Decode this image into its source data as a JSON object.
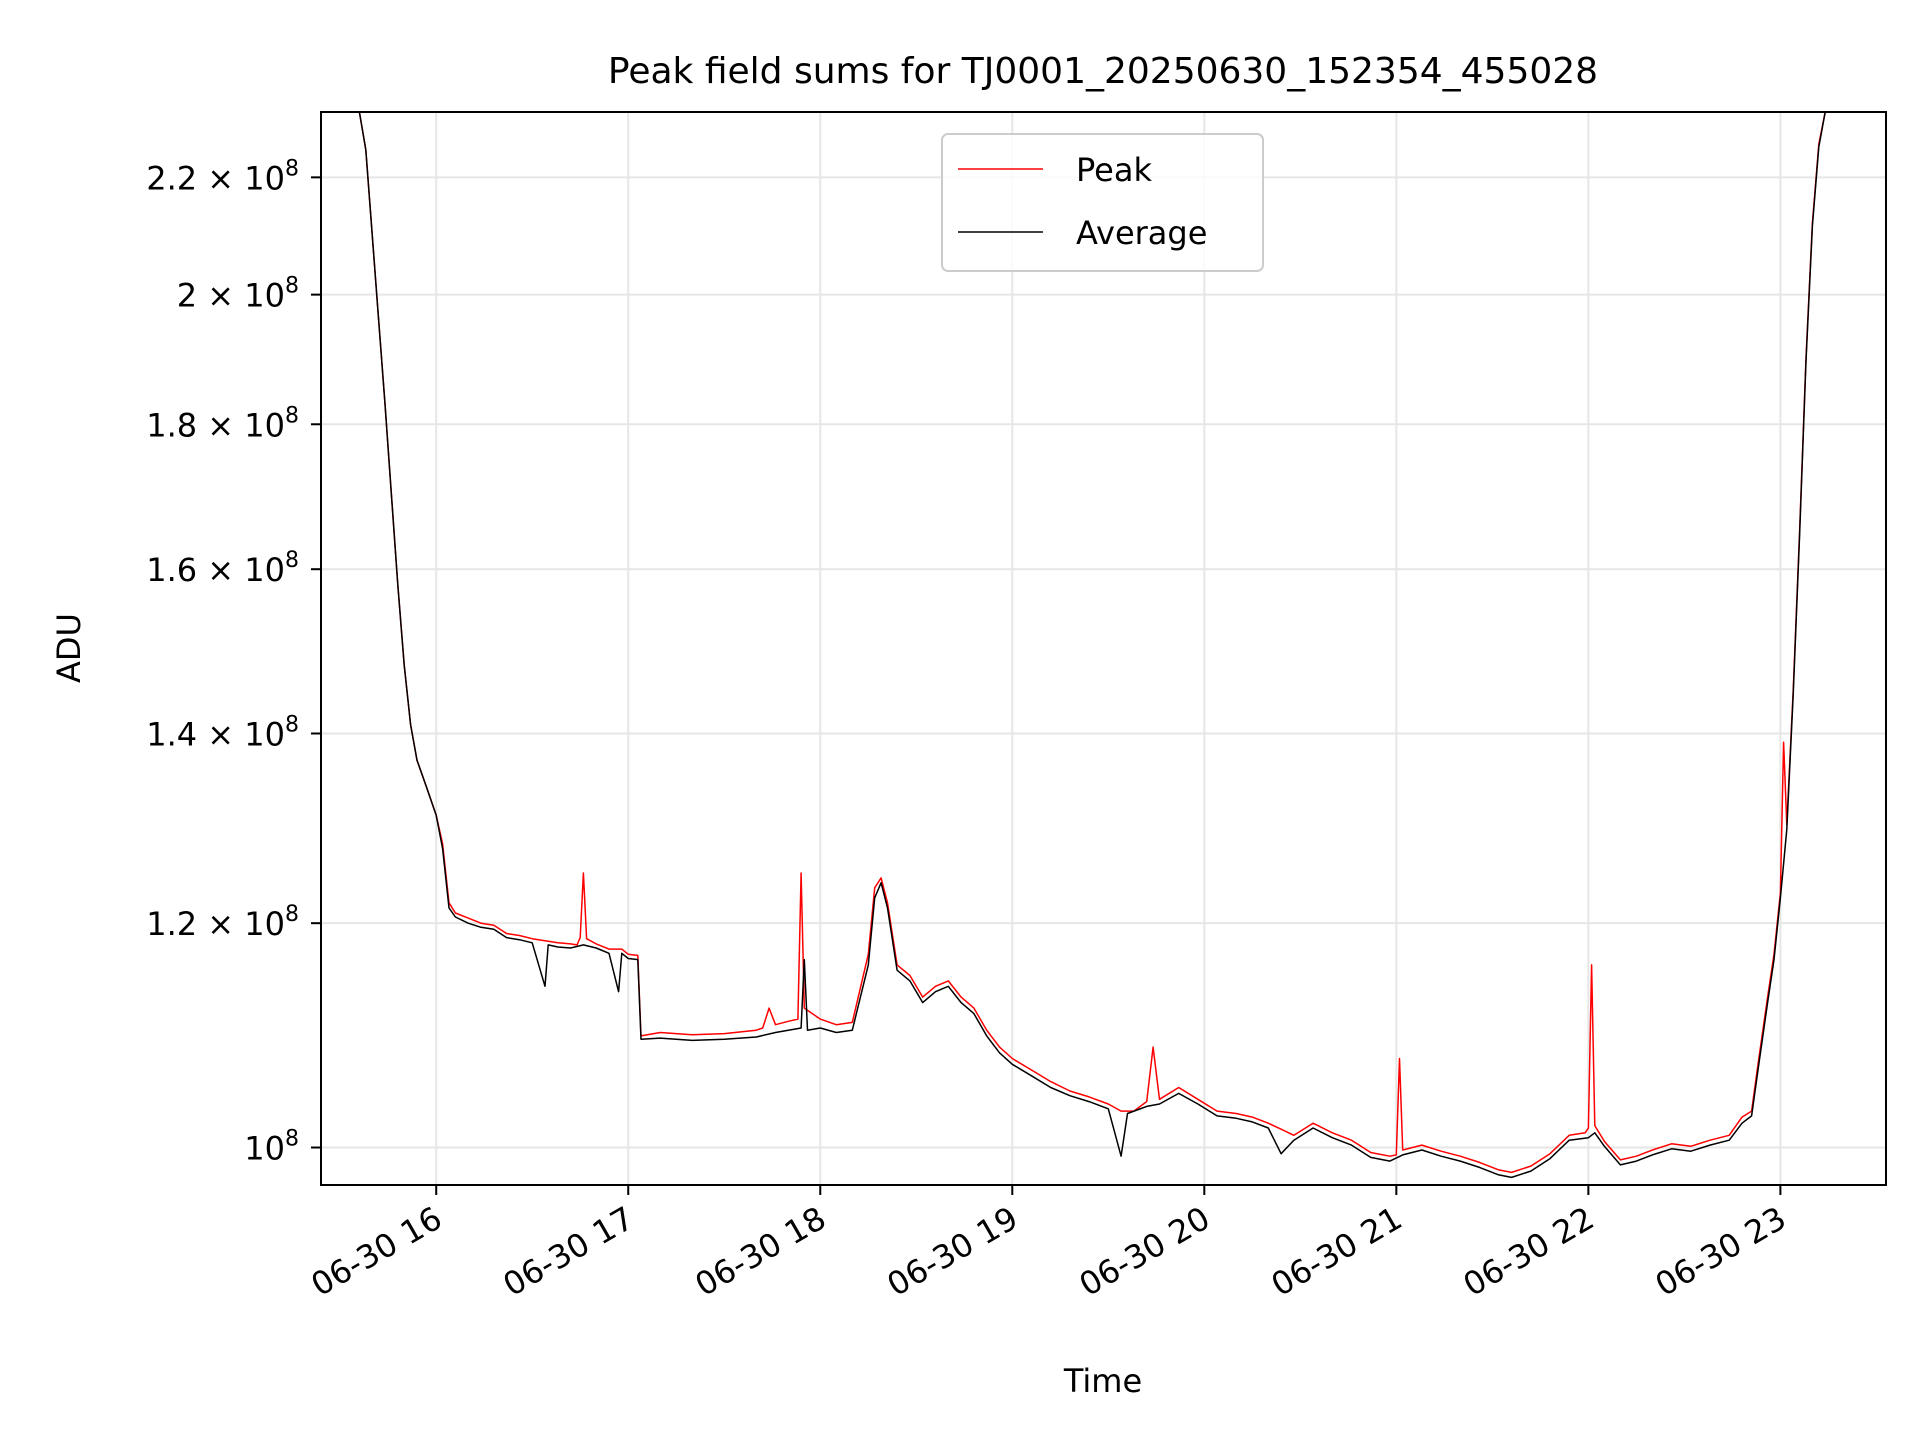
{
  "chart_data": {
    "type": "line",
    "title": "Peak field sums for TJ0001_20250630_152354_455028",
    "xlabel": "Time",
    "ylabel": "ADU",
    "y_scale": "log",
    "x_range": [
      "2025-06-30 15:24",
      "2025-06-30 23:33"
    ],
    "y_range": [
      97000000,
      232000000
    ],
    "grid": true,
    "legend_position": "upper center",
    "x_ticks": [
      {
        "t": "2025-06-30 16:00",
        "label": "06-30 16"
      },
      {
        "t": "2025-06-30 17:00",
        "label": "06-30 17"
      },
      {
        "t": "2025-06-30 18:00",
        "label": "06-30 18"
      },
      {
        "t": "2025-06-30 19:00",
        "label": "06-30 19"
      },
      {
        "t": "2025-06-30 20:00",
        "label": "06-30 20"
      },
      {
        "t": "2025-06-30 21:00",
        "label": "06-30 21"
      },
      {
        "t": "2025-06-30 22:00",
        "label": "06-30 22"
      },
      {
        "t": "2025-06-30 23:00",
        "label": "06-30 23"
      }
    ],
    "y_ticks": [
      {
        "value": 100000000,
        "mantissa": "",
        "exp": "8"
      },
      {
        "value": 120000000,
        "mantissa": "1.2",
        "exp": "8"
      },
      {
        "value": 140000000,
        "mantissa": "1.4",
        "exp": "8"
      },
      {
        "value": 160000000,
        "mantissa": "1.6",
        "exp": "8"
      },
      {
        "value": 180000000,
        "mantissa": "1.8",
        "exp": "8"
      },
      {
        "value": 200000000,
        "mantissa": "2",
        "exp": "8"
      },
      {
        "value": 220000000,
        "mantissa": "2.2",
        "exp": "8"
      }
    ],
    "series": [
      {
        "name": "Peak",
        "color": "#ff0000",
        "points": [
          [
            "15:36",
            232000000
          ],
          [
            "15:38",
            225000000
          ],
          [
            "15:40",
            210000000
          ],
          [
            "15:42",
            196000000
          ],
          [
            "15:44",
            183000000
          ],
          [
            "15:46",
            170000000
          ],
          [
            "15:48",
            158000000
          ],
          [
            "15:50",
            148000000
          ],
          [
            "15:52",
            141000000
          ],
          [
            "15:54",
            137000000
          ],
          [
            "15:57",
            134000000
          ],
          [
            "16:00",
            131000000
          ],
          [
            "16:02",
            128000000
          ],
          [
            "16:04",
            122000000
          ],
          [
            "16:06",
            121000000
          ],
          [
            "16:10",
            120500000
          ],
          [
            "16:14",
            120000000
          ],
          [
            "16:18",
            119800000
          ],
          [
            "16:22",
            119000000
          ],
          [
            "16:26",
            118800000
          ],
          [
            "16:30",
            118500000
          ],
          [
            "16:34",
            118300000
          ],
          [
            "16:38",
            118100000
          ],
          [
            "16:42",
            118000000
          ],
          [
            "16:44",
            117900000
          ],
          [
            "16:45",
            118600000
          ],
          [
            "16:46",
            125000000
          ],
          [
            "16:47",
            118500000
          ],
          [
            "16:50",
            118000000
          ],
          [
            "16:54",
            117500000
          ],
          [
            "16:58",
            117500000
          ],
          [
            "17:00",
            117000000
          ],
          [
            "17:03",
            116900000
          ],
          [
            "17:04",
            109500000
          ],
          [
            "17:10",
            109800000
          ],
          [
            "17:20",
            109600000
          ],
          [
            "17:30",
            109700000
          ],
          [
            "17:40",
            110000000
          ],
          [
            "17:42",
            110200000
          ],
          [
            "17:44",
            112000000
          ],
          [
            "17:46",
            110500000
          ],
          [
            "17:50",
            110800000
          ],
          [
            "17:53",
            111000000
          ],
          [
            "17:54",
            125000000
          ],
          [
            "17:55",
            112000000
          ],
          [
            "18:00",
            111000000
          ],
          [
            "18:05",
            110500000
          ],
          [
            "18:10",
            110700000
          ],
          [
            "18:15",
            117000000
          ],
          [
            "18:17",
            123500000
          ],
          [
            "18:19",
            124500000
          ],
          [
            "18:21",
            122000000
          ],
          [
            "18:24",
            116000000
          ],
          [
            "18:28",
            115000000
          ],
          [
            "18:32",
            113000000
          ],
          [
            "18:36",
            114000000
          ],
          [
            "18:40",
            114500000
          ],
          [
            "18:44",
            113000000
          ],
          [
            "18:48",
            112000000
          ],
          [
            "18:52",
            110000000
          ],
          [
            "18:56",
            108500000
          ],
          [
            "19:00",
            107500000
          ],
          [
            "19:06",
            106500000
          ],
          [
            "19:12",
            105500000
          ],
          [
            "19:18",
            104700000
          ],
          [
            "19:24",
            104200000
          ],
          [
            "19:30",
            103600000
          ],
          [
            "19:34",
            103000000
          ],
          [
            "19:38",
            103000000
          ],
          [
            "19:42",
            103800000
          ],
          [
            "19:44",
            108500000
          ],
          [
            "19:46",
            104000000
          ],
          [
            "19:52",
            105000000
          ],
          [
            "19:58",
            104000000
          ],
          [
            "20:04",
            103000000
          ],
          [
            "20:10",
            102800000
          ],
          [
            "20:15",
            102500000
          ],
          [
            "20:20",
            102000000
          ],
          [
            "20:24",
            101500000
          ],
          [
            "20:28",
            101000000
          ],
          [
            "20:34",
            102000000
          ],
          [
            "20:40",
            101200000
          ],
          [
            "20:46",
            100600000
          ],
          [
            "20:52",
            99600000
          ],
          [
            "20:58",
            99300000
          ],
          [
            "21:00",
            99400000
          ],
          [
            "21:01",
            107500000
          ],
          [
            "21:02",
            99800000
          ],
          [
            "21:08",
            100200000
          ],
          [
            "21:14",
            99700000
          ],
          [
            "21:20",
            99300000
          ],
          [
            "21:26",
            98800000
          ],
          [
            "21:32",
            98200000
          ],
          [
            "21:36",
            98000000
          ],
          [
            "21:42",
            98500000
          ],
          [
            "21:48",
            99500000
          ],
          [
            "21:54",
            101000000
          ],
          [
            "21:59",
            101200000
          ],
          [
            "22:00",
            101600000
          ],
          [
            "22:01",
            116000000
          ],
          [
            "22:02",
            101800000
          ],
          [
            "22:05",
            100500000
          ],
          [
            "22:10",
            99000000
          ],
          [
            "22:15",
            99300000
          ],
          [
            "22:20",
            99800000
          ],
          [
            "22:26",
            100300000
          ],
          [
            "22:32",
            100100000
          ],
          [
            "22:38",
            100600000
          ],
          [
            "22:44",
            101000000
          ],
          [
            "22:48",
            102500000
          ],
          [
            "22:51",
            103000000
          ],
          [
            "22:53",
            107000000
          ],
          [
            "22:56",
            113000000
          ],
          [
            "22:58",
            117000000
          ],
          [
            "23:00",
            123000000
          ],
          [
            "23:01",
            139000000
          ],
          [
            "23:02",
            130000000
          ],
          [
            "23:04",
            145000000
          ],
          [
            "23:06",
            165000000
          ],
          [
            "23:08",
            190000000
          ],
          [
            "23:10",
            212000000
          ],
          [
            "23:12",
            226000000
          ],
          [
            "23:14",
            232000000
          ]
        ]
      },
      {
        "name": "Average",
        "color": "#000000",
        "points": [
          [
            "15:36",
            232000000
          ],
          [
            "15:38",
            225000000
          ],
          [
            "15:40",
            210000000
          ],
          [
            "15:42",
            196000000
          ],
          [
            "15:44",
            183000000
          ],
          [
            "15:46",
            170000000
          ],
          [
            "15:48",
            158000000
          ],
          [
            "15:50",
            148000000
          ],
          [
            "15:52",
            141000000
          ],
          [
            "15:54",
            137000000
          ],
          [
            "15:57",
            134000000
          ],
          [
            "16:00",
            131000000
          ],
          [
            "16:02",
            127500000
          ],
          [
            "16:04",
            121500000
          ],
          [
            "16:06",
            120600000
          ],
          [
            "16:10",
            120000000
          ],
          [
            "16:14",
            119600000
          ],
          [
            "16:18",
            119400000
          ],
          [
            "16:22",
            118600000
          ],
          [
            "16:26",
            118400000
          ],
          [
            "16:30",
            118100000
          ],
          [
            "16:34",
            114000000
          ],
          [
            "16:35",
            117900000
          ],
          [
            "16:38",
            117700000
          ],
          [
            "16:42",
            117600000
          ],
          [
            "16:46",
            117900000
          ],
          [
            "16:50",
            117600000
          ],
          [
            "16:54",
            117100000
          ],
          [
            "16:57",
            113500000
          ],
          [
            "16:58",
            117100000
          ],
          [
            "17:00",
            116600000
          ],
          [
            "17:03",
            116500000
          ],
          [
            "17:04",
            109200000
          ],
          [
            "17:10",
            109300000
          ],
          [
            "17:20",
            109100000
          ],
          [
            "17:30",
            109200000
          ],
          [
            "17:40",
            109400000
          ],
          [
            "17:46",
            109800000
          ],
          [
            "17:50",
            110000000
          ],
          [
            "17:54",
            110200000
          ],
          [
            "17:55",
            116500000
          ],
          [
            "17:56",
            110000000
          ],
          [
            "18:00",
            110200000
          ],
          [
            "18:05",
            109800000
          ],
          [
            "18:10",
            110000000
          ],
          [
            "18:15",
            116000000
          ],
          [
            "18:17",
            122500000
          ],
          [
            "18:19",
            124000000
          ],
          [
            "18:21",
            121500000
          ],
          [
            "18:24",
            115500000
          ],
          [
            "18:28",
            114500000
          ],
          [
            "18:32",
            112500000
          ],
          [
            "18:36",
            113500000
          ],
          [
            "18:40",
            114000000
          ],
          [
            "18:44",
            112500000
          ],
          [
            "18:48",
            111500000
          ],
          [
            "18:52",
            109500000
          ],
          [
            "18:56",
            108000000
          ],
          [
            "19:00",
            107000000
          ],
          [
            "19:06",
            106000000
          ],
          [
            "19:12",
            105000000
          ],
          [
            "19:18",
            104300000
          ],
          [
            "19:24",
            103800000
          ],
          [
            "19:30",
            103200000
          ],
          [
            "19:34",
            99300000
          ],
          [
            "19:36",
            102800000
          ],
          [
            "19:42",
            103400000
          ],
          [
            "19:46",
            103600000
          ],
          [
            "19:52",
            104500000
          ],
          [
            "19:58",
            103600000
          ],
          [
            "20:04",
            102600000
          ],
          [
            "20:10",
            102400000
          ],
          [
            "20:15",
            102100000
          ],
          [
            "20:20",
            101600000
          ],
          [
            "20:24",
            99500000
          ],
          [
            "20:28",
            100600000
          ],
          [
            "20:34",
            101600000
          ],
          [
            "20:40",
            100800000
          ],
          [
            "20:46",
            100200000
          ],
          [
            "20:52",
            99200000
          ],
          [
            "20:58",
            98900000
          ],
          [
            "21:02",
            99400000
          ],
          [
            "21:08",
            99800000
          ],
          [
            "21:14",
            99300000
          ],
          [
            "21:20",
            98900000
          ],
          [
            "21:26",
            98400000
          ],
          [
            "21:32",
            97800000
          ],
          [
            "21:36",
            97600000
          ],
          [
            "21:42",
            98100000
          ],
          [
            "21:48",
            99100000
          ],
          [
            "21:54",
            100600000
          ],
          [
            "22:00",
            100800000
          ],
          [
            "22:02",
            101200000
          ],
          [
            "22:05",
            100100000
          ],
          [
            "22:10",
            98600000
          ],
          [
            "22:15",
            98900000
          ],
          [
            "22:20",
            99400000
          ],
          [
            "22:26",
            99900000
          ],
          [
            "22:32",
            99700000
          ],
          [
            "22:38",
            100200000
          ],
          [
            "22:44",
            100600000
          ],
          [
            "22:48",
            102000000
          ],
          [
            "22:51",
            102600000
          ],
          [
            "22:53",
            106500000
          ],
          [
            "22:56",
            112500000
          ],
          [
            "22:58",
            116500000
          ],
          [
            "23:00",
            122500000
          ],
          [
            "23:02",
            129500000
          ],
          [
            "23:04",
            144500000
          ],
          [
            "23:06",
            164500000
          ],
          [
            "23:08",
            189500000
          ],
          [
            "23:10",
            211500000
          ],
          [
            "23:12",
            225500000
          ],
          [
            "23:14",
            232000000
          ]
        ]
      }
    ]
  }
}
